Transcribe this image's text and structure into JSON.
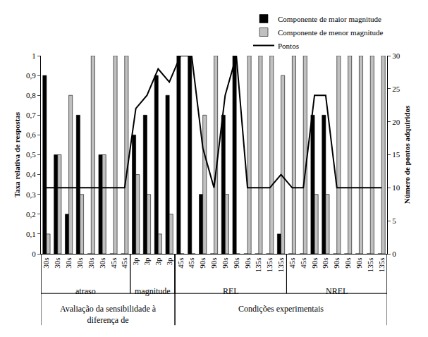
{
  "chart_data": {
    "type": "bar",
    "y_label": "Taxa relativa de respostas",
    "y2_label": "Número de pontos adquiridos",
    "categories": [
      "30s",
      "30s",
      "30s",
      "30s",
      "30s",
      "30s",
      "45s",
      "45s",
      "3p",
      "3p",
      "3p",
      "3p",
      "45s",
      "45s",
      "90s",
      "90s",
      "90s",
      "90s",
      "90s",
      "135s",
      "135s",
      "135s",
      "45s",
      "45s",
      "90s",
      "90s",
      "90s",
      "90s",
      "90s",
      "135s",
      "135s"
    ],
    "groups": [
      {
        "label": "atraso",
        "size": 8
      },
      {
        "label": "magnitude",
        "size": 4
      },
      {
        "label": "REL",
        "size": 10
      },
      {
        "label": "NREL",
        "size": 9
      }
    ],
    "supergroups": [
      {
        "label": [
          "Avaliação da sensibilidade à",
          "diferença de"
        ],
        "size": 12
      },
      {
        "label": "Condições experimentais",
        "size": 19
      }
    ],
    "series": [
      {
        "name": "Componente de maior magnitude",
        "type": "bar",
        "color": "#000000",
        "values": [
          0.9,
          0.5,
          0.2,
          0.7,
          0,
          0.5,
          0,
          0,
          0.6,
          0.7,
          0.9,
          0.8,
          1,
          1,
          0.3,
          0,
          0.7,
          1,
          0,
          0,
          0,
          0.1,
          0,
          0,
          0.7,
          0.7,
          0,
          0,
          0,
          0,
          0
        ]
      },
      {
        "name": "Componente de menor magnitude",
        "type": "bar",
        "color": "#c0c0c0",
        "values": [
          0.1,
          0.5,
          0.8,
          0.3,
          1,
          0.5,
          1,
          1,
          0.4,
          0.3,
          0.1,
          0.2,
          0,
          0,
          0.7,
          1,
          0.3,
          0,
          1,
          1,
          1,
          0.9,
          1,
          1,
          0.3,
          0.3,
          1,
          1,
          1,
          1,
          1
        ]
      },
      {
        "name": "Pontos",
        "type": "line",
        "color": "#000000",
        "axis": "y2",
        "values": [
          10,
          10,
          10,
          10,
          10,
          10,
          10,
          10,
          22,
          24,
          28,
          26,
          30,
          30,
          16,
          10,
          24,
          30,
          10,
          10,
          10,
          12,
          10,
          10,
          24,
          24,
          10,
          10,
          10,
          10,
          10
        ]
      }
    ],
    "ylim": [
      0,
      1
    ],
    "yticks": [
      0,
      {
        "value": 0.1,
        "label": "0,1"
      },
      {
        "value": 0.2,
        "label": "0,2"
      },
      {
        "value": 0.3,
        "label": "0,3"
      },
      {
        "value": 0.4,
        "label": "0,4"
      },
      {
        "value": 0.5,
        "label": "0,5"
      },
      {
        "value": 0.6,
        "label": "0,6"
      },
      {
        "value": 0.7,
        "label": "0,7"
      },
      {
        "value": 0.8,
        "label": "0,8"
      },
      {
        "value": 0.9,
        "label": "0,9"
      },
      1
    ],
    "y2lim": [
      0,
      30
    ],
    "y2ticks": [
      0,
      5,
      10,
      15,
      20,
      25,
      30
    ],
    "grid": false,
    "legend": "top right"
  }
}
